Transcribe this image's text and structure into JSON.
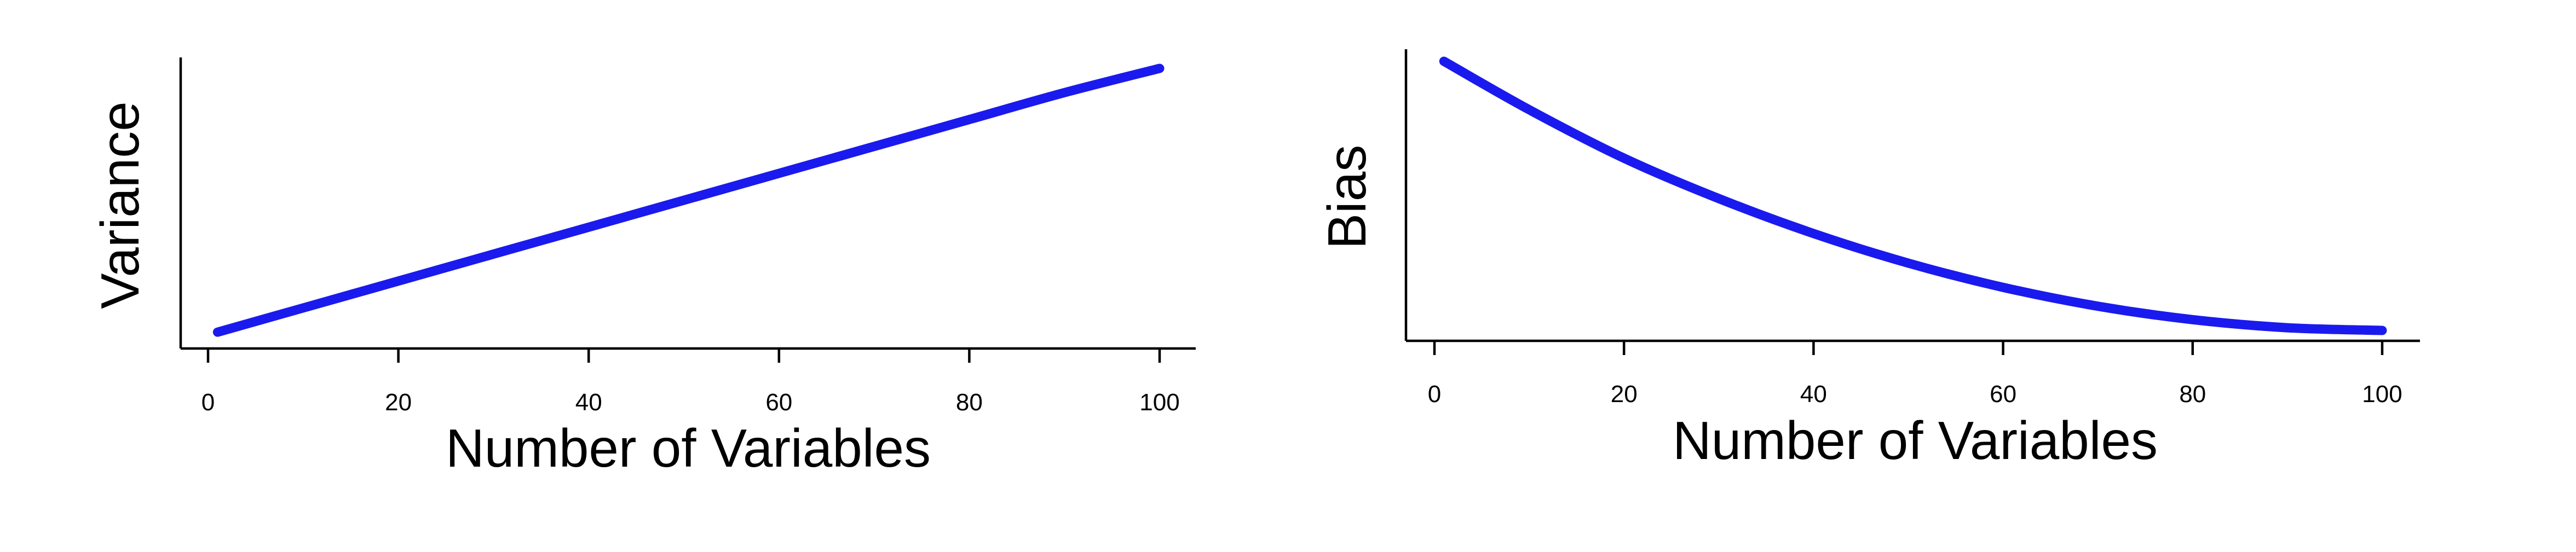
{
  "chart_data": [
    {
      "type": "line",
      "title": "",
      "xlabel": "Number of Variables",
      "ylabel": "Variance",
      "xlim": [
        0,
        100
      ],
      "ylim": [
        0,
        1
      ],
      "xticks": [
        0,
        20,
        40,
        60,
        80,
        100
      ],
      "grid": false,
      "color": "#1a1aee",
      "x": [
        1,
        10,
        20,
        30,
        40,
        50,
        60,
        70,
        80,
        90,
        100
      ],
      "y": [
        0.02,
        0.11,
        0.21,
        0.31,
        0.41,
        0.51,
        0.61,
        0.71,
        0.81,
        0.91,
        1.0
      ]
    },
    {
      "type": "line",
      "title": "",
      "xlabel": "Number of Variables",
      "ylabel": "Bias",
      "xlim": [
        0,
        100
      ],
      "ylim": [
        0,
        1
      ],
      "xticks": [
        0,
        20,
        40,
        60,
        80,
        100
      ],
      "grid": false,
      "color": "#1a1aee",
      "x": [
        1,
        10,
        20,
        30,
        40,
        50,
        60,
        70,
        80,
        90,
        100
      ],
      "y": [
        1.0,
        0.82,
        0.64,
        0.49,
        0.36,
        0.25,
        0.16,
        0.09,
        0.04,
        0.01,
        0.0
      ]
    }
  ]
}
